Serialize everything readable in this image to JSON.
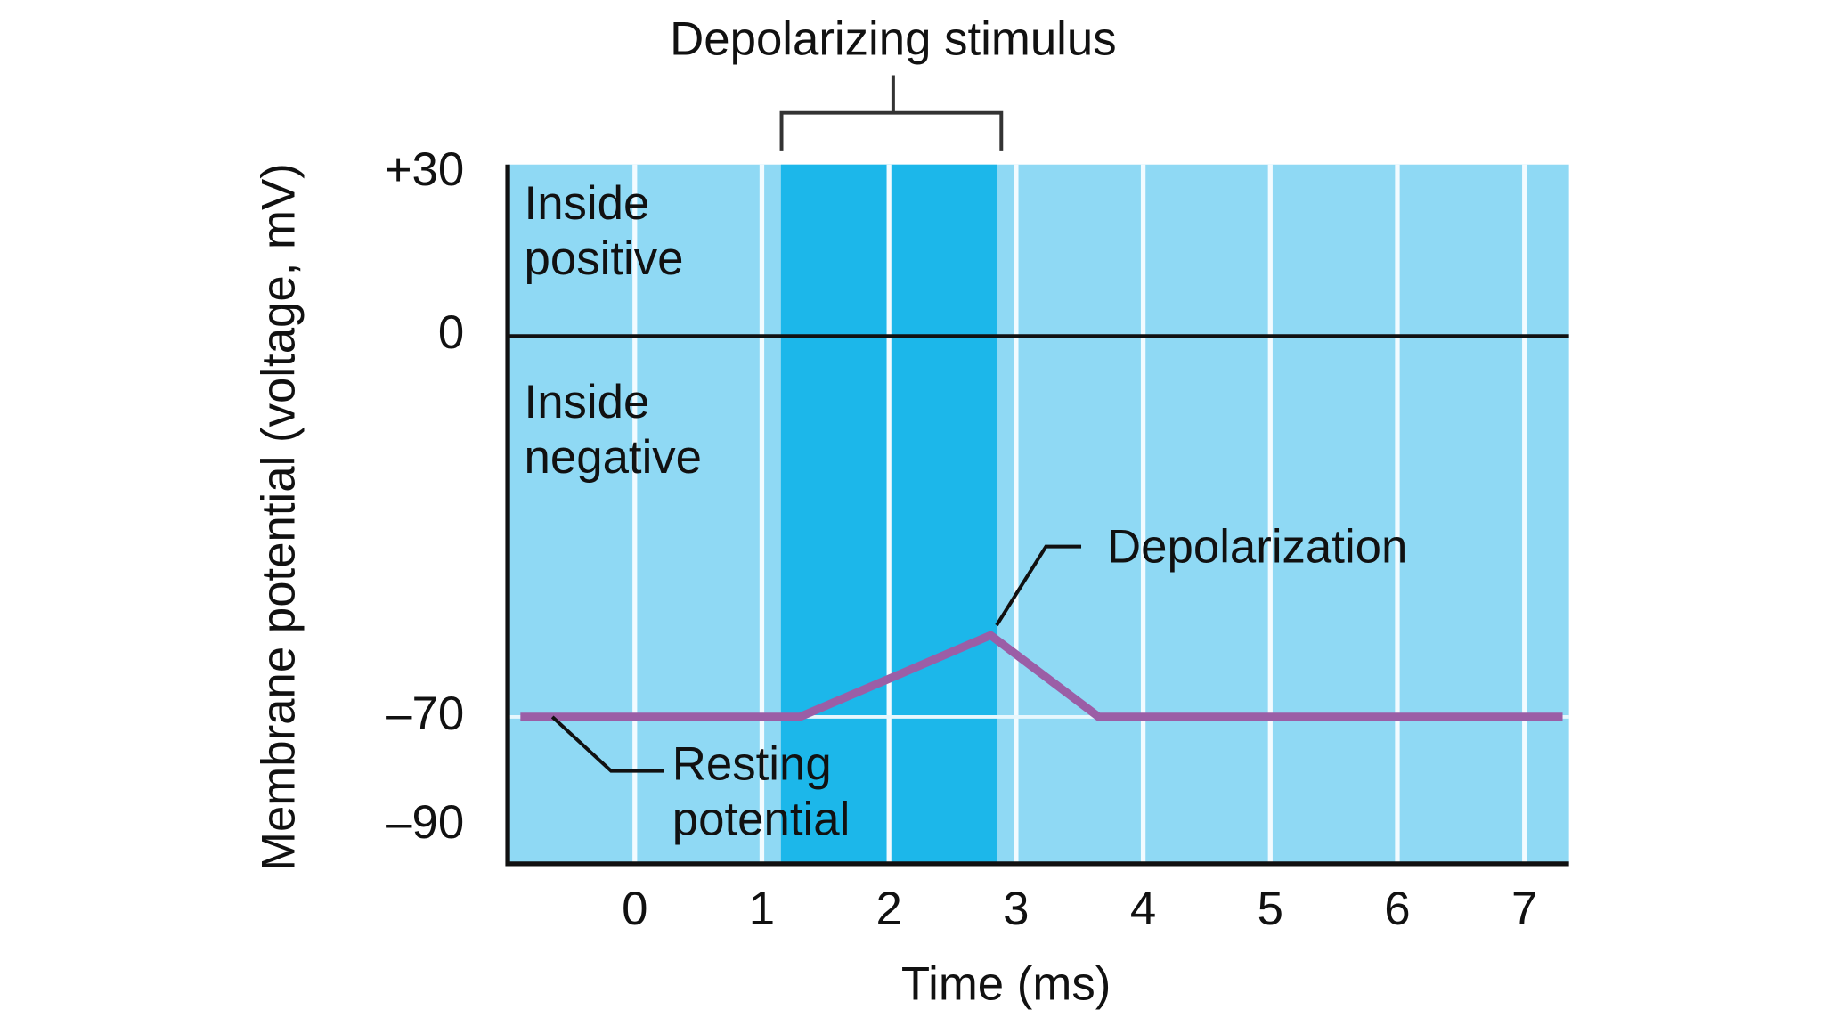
{
  "chart_data": {
    "type": "line",
    "y_label": "Membrane potential (voltage, mV)",
    "x_label": "Time (ms)",
    "x": [
      -0.9,
      1.3,
      2.8,
      3.65,
      7.3
    ],
    "series": [
      {
        "values": [
          -70,
          -70,
          -55,
          -70,
          -70
        ],
        "color": "#9b5ea6"
      }
    ],
    "xlim": [
      -1,
      7.35
    ],
    "ylim": [
      -97,
      31.5
    ],
    "xticks": [
      0,
      1,
      2,
      3,
      4,
      5,
      6,
      7
    ],
    "yticks": [
      {
        "value": 30,
        "label": "+30"
      },
      0,
      {
        "value": -70,
        "label": "–70"
      },
      {
        "value": -90,
        "label": "–90"
      }
    ],
    "grid": true,
    "background": "#8fd9f4",
    "ref_lines": [
      {
        "value": 0,
        "color": "#111111"
      },
      {
        "value": -70,
        "color": "#e6f7fd"
      }
    ],
    "stimulus": {
      "label": "Depolarizing stimulus",
      "x": [
        1.15,
        2.85
      ],
      "color": "#1cb7ea"
    },
    "annotations": {
      "inside_positive": [
        "Inside",
        "positive"
      ],
      "inside_negative": [
        "Inside",
        "negative"
      ],
      "depolarization": [
        "Depolarization"
      ],
      "resting": [
        "Resting",
        "potential"
      ]
    }
  }
}
